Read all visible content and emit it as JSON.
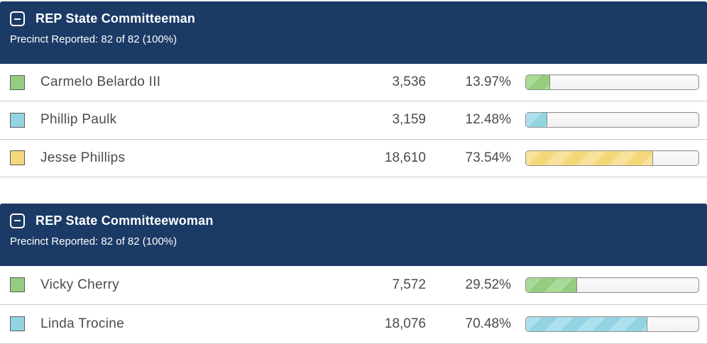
{
  "colors": {
    "header_background": "#1b3a66",
    "header_text": "#ffffff",
    "row_text": "#4b4b4b",
    "row_border": "#cdcdcd",
    "bar_background": "#f7f7f7",
    "bar_border": "#8e8e8e",
    "green": "#94cd7f",
    "blue": "#93d4e3",
    "yellow": "#f4d77a"
  },
  "icons": {
    "collapse": "minus-square"
  },
  "contests": [
    {
      "title": "REP State Committeeman",
      "precincts_label": "Precinct Reported: 82 of 82 (100%)",
      "candidates": [
        {
          "name": "Carmelo Belardo III",
          "votes": "3,536",
          "percent": "13.97%",
          "percent_value": 13.97,
          "color": "green"
        },
        {
          "name": "Phillip Paulk",
          "votes": "3,159",
          "percent": "12.48%",
          "percent_value": 12.48,
          "color": "blue"
        },
        {
          "name": "Jesse Phillips",
          "votes": "18,610",
          "percent": "73.54%",
          "percent_value": 73.54,
          "color": "yellow"
        }
      ]
    },
    {
      "title": "REP State Committeewoman",
      "precincts_label": "Precinct Reported: 82 of 82 (100%)",
      "candidates": [
        {
          "name": "Vicky Cherry",
          "votes": "7,572",
          "percent": "29.52%",
          "percent_value": 29.52,
          "color": "green"
        },
        {
          "name": "Linda Trocine",
          "votes": "18,076",
          "percent": "70.48%",
          "percent_value": 70.48,
          "color": "blue"
        }
      ]
    }
  ]
}
